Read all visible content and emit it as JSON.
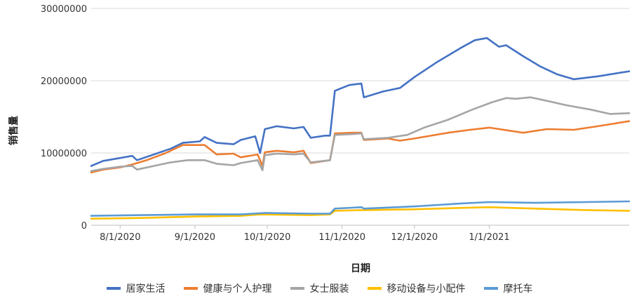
{
  "chart_data": {
    "type": "line",
    "title": "",
    "xlabel": "日期",
    "ylabel": "销售量",
    "ylim": [
      0,
      30000000
    ],
    "yticks": [
      "0",
      "10000000",
      "20000000",
      "30000000"
    ],
    "x_range": [
      "2020-07-20",
      "2021-02-28"
    ],
    "xticks": [
      {
        "date": "2020-08-01",
        "label": "8/1/2020"
      },
      {
        "date": "2020-09-01",
        "label": "9/1/2020"
      },
      {
        "date": "2020-10-01",
        "label": "10/1/2020"
      },
      {
        "date": "2020-11-01",
        "label": "11/1/2020"
      },
      {
        "date": "2020-12-01",
        "label": "12/1/2020"
      },
      {
        "date": "2021-01-01",
        "label": "1/1/2021"
      }
    ],
    "grid": {
      "horizontal": true,
      "vertical": false
    },
    "legend_position": "bottom",
    "series": [
      {
        "name": "居家生活",
        "color": "#4472C4",
        "points": [
          [
            "2020-07-20",
            8200000
          ],
          [
            "2020-07-25",
            8900000
          ],
          [
            "2020-08-01",
            9300000
          ],
          [
            "2020-08-06",
            9600000
          ],
          [
            "2020-08-08",
            9000000
          ],
          [
            "2020-08-15",
            9800000
          ],
          [
            "2020-08-22",
            10600000
          ],
          [
            "2020-08-27",
            11400000
          ],
          [
            "2020-09-03",
            11600000
          ],
          [
            "2020-09-05",
            12200000
          ],
          [
            "2020-09-10",
            11400000
          ],
          [
            "2020-09-17",
            11200000
          ],
          [
            "2020-09-20",
            11800000
          ],
          [
            "2020-09-26",
            12300000
          ],
          [
            "2020-09-28",
            10000000
          ],
          [
            "2020-09-30",
            13300000
          ],
          [
            "2020-10-05",
            13700000
          ],
          [
            "2020-10-12",
            13400000
          ],
          [
            "2020-10-16",
            13600000
          ],
          [
            "2020-10-19",
            12100000
          ],
          [
            "2020-10-25",
            12400000
          ],
          [
            "2020-10-27",
            12400000
          ],
          [
            "2020-10-29",
            18600000
          ],
          [
            "2020-11-04",
            19400000
          ],
          [
            "2020-11-09",
            19600000
          ],
          [
            "2020-11-10",
            17700000
          ],
          [
            "2020-11-18",
            18500000
          ],
          [
            "2020-11-25",
            19000000
          ],
          [
            "2020-12-01",
            20500000
          ],
          [
            "2020-12-10",
            22500000
          ],
          [
            "2020-12-20",
            24500000
          ],
          [
            "2020-12-26",
            25600000
          ],
          [
            "2020-12-31",
            25900000
          ],
          [
            "2021-01-05",
            24700000
          ],
          [
            "2021-01-08",
            24900000
          ],
          [
            "2021-01-15",
            23400000
          ],
          [
            "2021-01-22",
            22000000
          ],
          [
            "2021-01-29",
            20900000
          ],
          [
            "2021-02-05",
            20200000
          ],
          [
            "2021-02-15",
            20600000
          ],
          [
            "2021-02-28",
            21300000
          ]
        ]
      },
      {
        "name": "健康与个人护理",
        "color": "#ED7D31",
        "points": [
          [
            "2020-07-20",
            7300000
          ],
          [
            "2020-07-25",
            7700000
          ],
          [
            "2020-08-01",
            8000000
          ],
          [
            "2020-08-06",
            8400000
          ],
          [
            "2020-08-12",
            9000000
          ],
          [
            "2020-08-20",
            10000000
          ],
          [
            "2020-08-27",
            11100000
          ],
          [
            "2020-09-05",
            11100000
          ],
          [
            "2020-09-10",
            9800000
          ],
          [
            "2020-09-17",
            9900000
          ],
          [
            "2020-09-20",
            9400000
          ],
          [
            "2020-09-27",
            9800000
          ],
          [
            "2020-09-29",
            8200000
          ],
          [
            "2020-09-30",
            10100000
          ],
          [
            "2020-10-05",
            10300000
          ],
          [
            "2020-10-12",
            10100000
          ],
          [
            "2020-10-16",
            10300000
          ],
          [
            "2020-10-19",
            8600000
          ],
          [
            "2020-10-27",
            9000000
          ],
          [
            "2020-10-29",
            12700000
          ],
          [
            "2020-11-05",
            12800000
          ],
          [
            "2020-11-09",
            12800000
          ],
          [
            "2020-11-10",
            11800000
          ],
          [
            "2020-11-20",
            12000000
          ],
          [
            "2020-11-25",
            11700000
          ],
          [
            "2020-12-01",
            12000000
          ],
          [
            "2020-12-15",
            12800000
          ],
          [
            "2020-12-24",
            13200000
          ],
          [
            "2021-01-01",
            13500000
          ],
          [
            "2021-01-15",
            12800000
          ],
          [
            "2021-01-25",
            13300000
          ],
          [
            "2021-02-05",
            13200000
          ],
          [
            "2021-02-15",
            13700000
          ],
          [
            "2021-02-28",
            14400000
          ]
        ]
      },
      {
        "name": "女士服装",
        "color": "#A5A5A5",
        "points": [
          [
            "2020-07-20",
            7500000
          ],
          [
            "2020-07-25",
            7800000
          ],
          [
            "2020-08-01",
            8100000
          ],
          [
            "2020-08-06",
            8200000
          ],
          [
            "2020-08-08",
            7700000
          ],
          [
            "2020-08-15",
            8200000
          ],
          [
            "2020-08-22",
            8700000
          ],
          [
            "2020-08-29",
            9000000
          ],
          [
            "2020-09-05",
            9000000
          ],
          [
            "2020-09-10",
            8500000
          ],
          [
            "2020-09-17",
            8300000
          ],
          [
            "2020-09-20",
            8600000
          ],
          [
            "2020-09-27",
            9000000
          ],
          [
            "2020-09-29",
            7600000
          ],
          [
            "2020-09-30",
            9700000
          ],
          [
            "2020-10-05",
            9900000
          ],
          [
            "2020-10-12",
            9800000
          ],
          [
            "2020-10-16",
            9900000
          ],
          [
            "2020-10-19",
            8700000
          ],
          [
            "2020-10-27",
            9000000
          ],
          [
            "2020-10-29",
            12500000
          ],
          [
            "2020-11-05",
            12600000
          ],
          [
            "2020-11-09",
            12700000
          ],
          [
            "2020-11-10",
            11900000
          ],
          [
            "2020-11-20",
            12100000
          ],
          [
            "2020-11-28",
            12500000
          ],
          [
            "2020-12-05",
            13500000
          ],
          [
            "2020-12-15",
            14600000
          ],
          [
            "2020-12-25",
            16000000
          ],
          [
            "2021-01-02",
            17000000
          ],
          [
            "2021-01-08",
            17600000
          ],
          [
            "2021-01-12",
            17500000
          ],
          [
            "2021-01-18",
            17700000
          ],
          [
            "2021-01-25",
            17200000
          ],
          [
            "2021-02-02",
            16600000
          ],
          [
            "2021-02-12",
            16000000
          ],
          [
            "2021-02-20",
            15400000
          ],
          [
            "2021-02-28",
            15500000
          ]
        ]
      },
      {
        "name": "移动设备与小配件",
        "color": "#FFC000",
        "points": [
          [
            "2020-07-20",
            900000
          ],
          [
            "2020-08-10",
            1000000
          ],
          [
            "2020-09-01",
            1200000
          ],
          [
            "2020-09-20",
            1300000
          ],
          [
            "2020-09-28",
            1500000
          ],
          [
            "2020-10-19",
            1400000
          ],
          [
            "2020-10-27",
            1500000
          ],
          [
            "2020-10-29",
            2000000
          ],
          [
            "2020-11-10",
            2100000
          ],
          [
            "2020-12-01",
            2200000
          ],
          [
            "2020-12-20",
            2400000
          ],
          [
            "2021-01-01",
            2500000
          ],
          [
            "2021-01-20",
            2300000
          ],
          [
            "2021-02-10",
            2100000
          ],
          [
            "2021-02-28",
            2000000
          ]
        ]
      },
      {
        "name": "摩托车",
        "color": "#5B9BD5",
        "points": [
          [
            "2020-07-20",
            1300000
          ],
          [
            "2020-08-10",
            1400000
          ],
          [
            "2020-09-01",
            1500000
          ],
          [
            "2020-09-20",
            1500000
          ],
          [
            "2020-09-30",
            1700000
          ],
          [
            "2020-10-19",
            1600000
          ],
          [
            "2020-10-27",
            1600000
          ],
          [
            "2020-10-29",
            2300000
          ],
          [
            "2020-11-09",
            2500000
          ],
          [
            "2020-11-10",
            2300000
          ],
          [
            "2020-12-01",
            2600000
          ],
          [
            "2020-12-20",
            3000000
          ],
          [
            "2021-01-01",
            3200000
          ],
          [
            "2021-01-20",
            3100000
          ],
          [
            "2021-02-10",
            3200000
          ],
          [
            "2021-02-28",
            3300000
          ]
        ]
      }
    ]
  }
}
